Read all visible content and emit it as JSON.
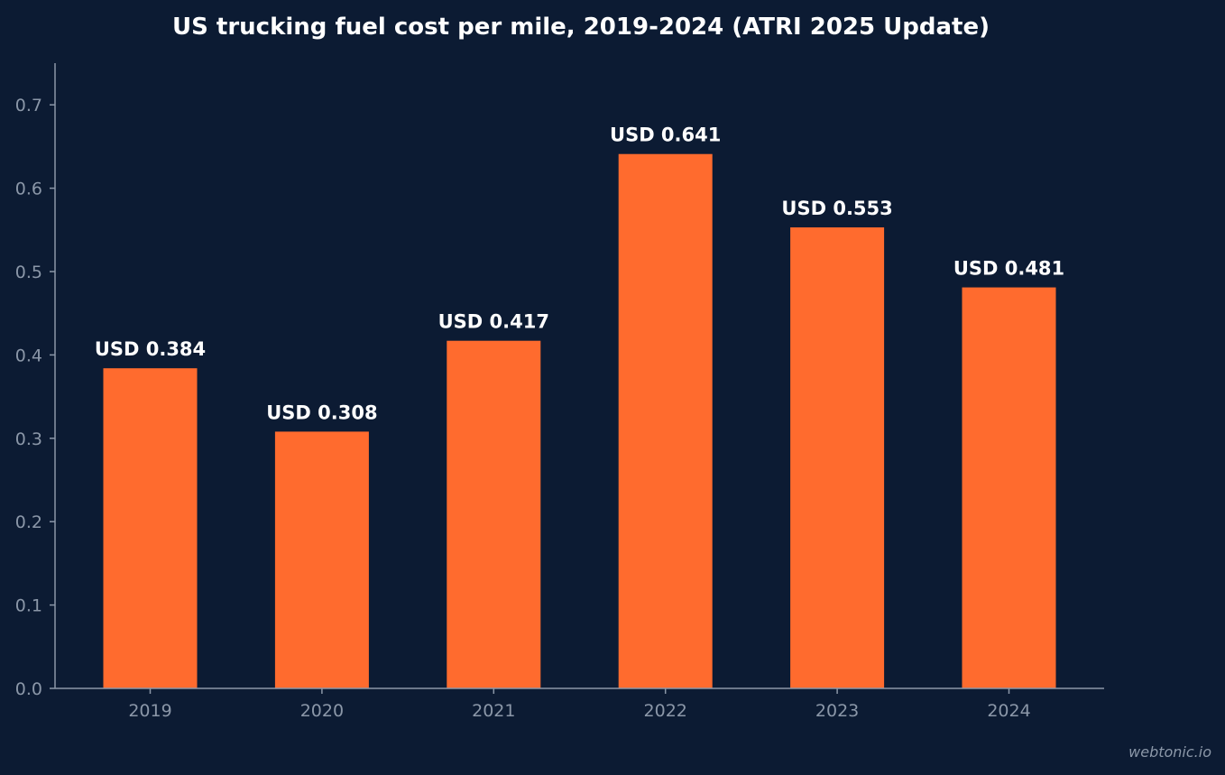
{
  "chart_data": {
    "type": "bar",
    "title": "US trucking fuel cost per mile, 2019-2024 (ATRI 2025 Update)",
    "xlabel": "",
    "ylabel": "",
    "categories": [
      "2019",
      "2020",
      "2021",
      "2022",
      "2023",
      "2024"
    ],
    "values": [
      0.384,
      0.308,
      0.417,
      0.641,
      0.553,
      0.481
    ],
    "data_labels": [
      "USD 0.384",
      "USD 0.308",
      "USD 0.417",
      "USD 0.641",
      "USD 0.553",
      "USD 0.481"
    ],
    "ylim": [
      0,
      0.75
    ],
    "yticks": [
      "0.0",
      "0.1",
      "0.2",
      "0.3",
      "0.4",
      "0.5",
      "0.6",
      "0.7"
    ],
    "ytick_values": [
      0,
      0.1,
      0.2,
      0.3,
      0.4,
      0.5,
      0.6,
      0.7
    ],
    "grid": false,
    "legend": "none",
    "colors": {
      "background": "#0c1b33",
      "bar": "#ff6b2e",
      "axis": "#8b97a8",
      "text": "#ffffff"
    }
  },
  "footer": {
    "watermark": "webtonic.io"
  }
}
